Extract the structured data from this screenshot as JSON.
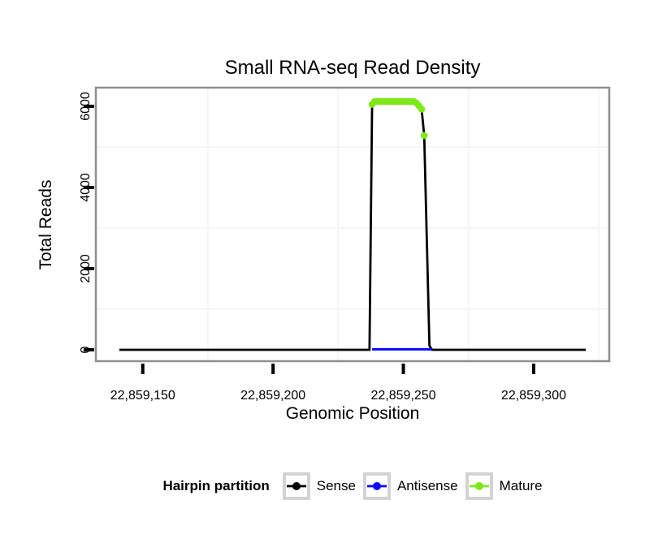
{
  "chart_data": {
    "type": "line",
    "title": "Small RNA-seq Read Density",
    "xlabel": "Genomic Position",
    "ylabel": "Total Reads",
    "xlim": [
      22859132,
      22859329
    ],
    "ylim": [
      -280,
      6460
    ],
    "x_ticks": {
      "values": [
        22859150,
        22859200,
        22859250,
        22859300
      ],
      "labels": [
        "22,859,150",
        "22,859,200",
        "22,859,250",
        "22,859,300"
      ]
    },
    "y_ticks": {
      "values": [
        0,
        2000,
        4000,
        6000
      ],
      "labels": [
        "0",
        "2000",
        "4000",
        "6000"
      ]
    },
    "x_minor_gridlines": [
      22859175,
      22859225,
      22859275,
      22859325
    ],
    "y_minor_gridlines": [
      1000,
      3000,
      5000
    ],
    "grid": "very faint minor gridlines only, white panel, gray panel border",
    "legend_position": "bottom",
    "series": [
      {
        "name": "Sense",
        "type": "line",
        "color": "#000000",
        "points": [
          [
            22859141,
            0
          ],
          [
            22859237,
            0
          ],
          [
            22859238,
            6050
          ],
          [
            22859239,
            6120
          ],
          [
            22859254,
            6120
          ],
          [
            22859255,
            6080
          ],
          [
            22859256,
            6010
          ],
          [
            22859257,
            5930
          ],
          [
            22859258,
            5280
          ],
          [
            22859260,
            100
          ],
          [
            22859261,
            0
          ],
          [
            22859320,
            0
          ]
        ]
      },
      {
        "name": "Antisense",
        "type": "line",
        "color": "#0808ff",
        "points": [
          [
            22859238,
            12
          ],
          [
            22859261,
            12
          ]
        ]
      },
      {
        "name": "Mature",
        "type": "points",
        "color": "#7ce817",
        "points": [
          [
            22859238,
            6050
          ],
          [
            22859239,
            6120
          ],
          [
            22859240,
            6120
          ],
          [
            22859241,
            6120
          ],
          [
            22859242,
            6120
          ],
          [
            22859243,
            6120
          ],
          [
            22859244,
            6120
          ],
          [
            22859245,
            6120
          ],
          [
            22859246,
            6120
          ],
          [
            22859247,
            6120
          ],
          [
            22859248,
            6120
          ],
          [
            22859249,
            6120
          ],
          [
            22859250,
            6120
          ],
          [
            22859251,
            6120
          ],
          [
            22859252,
            6120
          ],
          [
            22859253,
            6120
          ],
          [
            22859254,
            6120
          ],
          [
            22859255,
            6080
          ],
          [
            22859256,
            6010
          ],
          [
            22859257,
            5930
          ],
          [
            22859258,
            5280
          ]
        ]
      }
    ]
  },
  "legend": {
    "title": "Hairpin partition",
    "items": [
      {
        "label": "Sense",
        "color": "#000000"
      },
      {
        "label": "Antisense",
        "color": "#0808ff"
      },
      {
        "label": "Mature",
        "color": "#7ce817"
      }
    ]
  },
  "style": {
    "panel_border_color": "#8f8f8f",
    "gridline_color": "#f5f5f5",
    "tick_color": "#000000",
    "legend_key_border_color": "#d3d3d3"
  }
}
